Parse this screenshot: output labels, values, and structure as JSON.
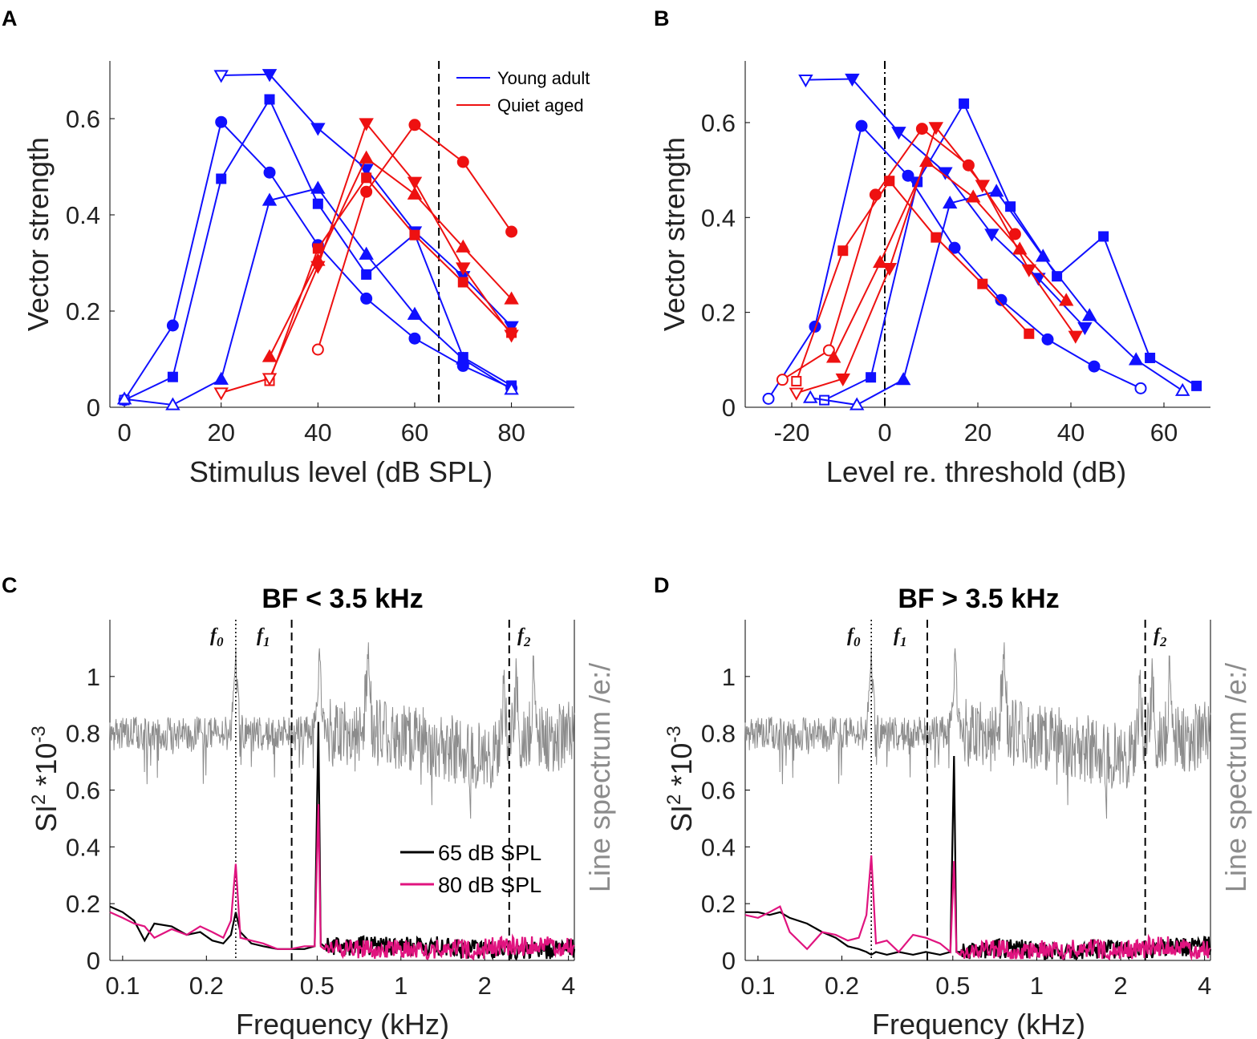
{
  "panels": {
    "A": {
      "letter": "A"
    },
    "B": {
      "letter": "B"
    },
    "C": {
      "letter": "C",
      "title": "BF < 3.5 kHz"
    },
    "D": {
      "letter": "D",
      "title": "BF > 3.5 kHz"
    }
  },
  "colors": {
    "young": "#1010ff",
    "aged": "#ee1111",
    "black": "#000000",
    "magenta": "#e0147f",
    "spectrum": "#8c8c8c"
  },
  "chart_data": [
    {
      "id": "A",
      "type": "line",
      "xlabel": "Stimulus level (dB SPL)",
      "ylabel": "Vector strength",
      "xlim": [
        -3,
        93
      ],
      "ylim": [
        0,
        0.72
      ],
      "xticks": [
        0,
        20,
        40,
        60,
        80
      ],
      "yticks": [
        0,
        0.2,
        0.4,
        0.6
      ],
      "ytick_labels": [
        "0",
        "0.2",
        "0.4",
        "0.6"
      ],
      "vline": {
        "x": 65,
        "style": "dashed"
      },
      "legend": [
        "Young adult",
        "Quiet aged"
      ],
      "series": [
        {
          "group": "young",
          "marker": "circle",
          "x": [
            0,
            10,
            20,
            30,
            40,
            50,
            60,
            70,
            80
          ],
          "y": [
            0.015,
            0.17,
            0.593,
            0.488,
            0.337,
            0.226,
            0.143,
            0.086,
            0.04
          ],
          "filled": [
            false,
            true,
            true,
            true,
            true,
            true,
            true,
            true,
            true
          ]
        },
        {
          "group": "young",
          "marker": "square",
          "x": [
            0,
            10,
            20,
            30,
            40,
            50,
            60,
            70,
            80
          ],
          "y": [
            0.015,
            0.063,
            0.475,
            0.64,
            0.423,
            0.276,
            0.36,
            0.104,
            0.045
          ],
          "filled": [
            false,
            true,
            true,
            true,
            true,
            true,
            true,
            true,
            true
          ]
        },
        {
          "group": "young",
          "marker": "triangle",
          "x": [
            0,
            10,
            20,
            30,
            40,
            50,
            60,
            70,
            80
          ],
          "y": [
            0.017,
            0.005,
            0.058,
            0.43,
            0.455,
            0.318,
            0.193,
            0.1,
            0.037
          ],
          "filled": [
            false,
            false,
            true,
            true,
            true,
            true,
            true,
            true,
            false
          ]
        },
        {
          "group": "young",
          "marker": "tri-down",
          "x": [
            20,
            30,
            40,
            50,
            60,
            70,
            80
          ],
          "y": [
            0.69,
            0.692,
            0.58,
            0.495,
            0.365,
            0.272,
            0.168
          ],
          "filled": [
            false,
            true,
            true,
            true,
            true,
            true,
            true
          ]
        },
        {
          "group": "aged",
          "marker": "circle",
          "x": [
            40,
            50,
            60,
            70,
            80
          ],
          "y": [
            0.12,
            0.448,
            0.587,
            0.51,
            0.365
          ],
          "filled": [
            false,
            true,
            true,
            true,
            true
          ]
        },
        {
          "group": "aged",
          "marker": "square",
          "x": [
            30,
            40,
            50,
            60,
            70,
            80
          ],
          "y": [
            0.055,
            0.33,
            0.477,
            0.358,
            0.26,
            0.155
          ],
          "filled": [
            false,
            true,
            true,
            true,
            true,
            true
          ]
        },
        {
          "group": "aged",
          "marker": "triangle",
          "x": [
            30,
            40,
            50,
            60,
            70,
            80
          ],
          "y": [
            0.105,
            0.305,
            0.518,
            0.443,
            0.333,
            0.225
          ],
          "filled": [
            true,
            true,
            true,
            true,
            true,
            true
          ]
        },
        {
          "group": "aged",
          "marker": "tri-down",
          "x": [
            20,
            30,
            40,
            50,
            60,
            70,
            80
          ],
          "y": [
            0.03,
            0.06,
            0.293,
            0.59,
            0.468,
            0.29,
            0.15
          ],
          "filled": [
            false,
            false,
            true,
            true,
            true,
            true,
            true
          ]
        }
      ]
    },
    {
      "id": "B",
      "type": "line",
      "xlabel": "Level re. threshold (dB)",
      "ylabel": "Vector strength",
      "xlim": [
        -30,
        70
      ],
      "ylim": [
        0,
        0.73
      ],
      "xticks": [
        -20,
        0,
        20,
        40,
        60
      ],
      "yticks": [
        0,
        0.2,
        0.4,
        0.6
      ],
      "ytick_labels": [
        "0",
        "0.2",
        "0.4",
        "0.6"
      ],
      "vline": {
        "x": 0,
        "style": "dashdot"
      },
      "series": [
        {
          "group": "young",
          "marker": "circle",
          "x": [
            -25,
            -15,
            -5,
            5,
            15,
            25,
            35,
            45,
            55
          ],
          "y": [
            0.018,
            0.17,
            0.593,
            0.488,
            0.336,
            0.226,
            0.143,
            0.086,
            0.04
          ],
          "filled": [
            false,
            true,
            true,
            true,
            true,
            true,
            true,
            true,
            false
          ]
        },
        {
          "group": "young",
          "marker": "square",
          "x": [
            -13,
            -3,
            7,
            17,
            27,
            37,
            47,
            57,
            67
          ],
          "y": [
            0.015,
            0.063,
            0.475,
            0.64,
            0.423,
            0.276,
            0.36,
            0.104,
            0.045
          ],
          "filled": [
            false,
            true,
            true,
            true,
            true,
            true,
            true,
            true,
            true
          ]
        },
        {
          "group": "young",
          "marker": "triangle",
          "x": [
            -16,
            -6,
            4,
            14,
            24,
            34,
            44,
            54,
            64
          ],
          "y": [
            0.02,
            0.005,
            0.058,
            0.43,
            0.455,
            0.318,
            0.193,
            0.1,
            0.035
          ],
          "filled": [
            false,
            false,
            true,
            true,
            true,
            true,
            true,
            true,
            false
          ]
        },
        {
          "group": "young",
          "marker": "tri-down",
          "x": [
            -17,
            -7,
            3,
            13,
            23,
            33,
            43
          ],
          "y": [
            0.69,
            0.692,
            0.58,
            0.495,
            0.365,
            0.272,
            0.168
          ],
          "filled": [
            false,
            true,
            true,
            true,
            true,
            true,
            true
          ]
        },
        {
          "group": "aged",
          "marker": "circle",
          "x": [
            -22,
            -12,
            -2,
            8,
            18,
            28
          ],
          "y": [
            0.058,
            0.12,
            0.448,
            0.587,
            0.51,
            0.365
          ],
          "filled": [
            false,
            false,
            true,
            true,
            true,
            true
          ]
        },
        {
          "group": "aged",
          "marker": "square",
          "x": [
            -19,
            -9,
            1,
            11,
            21,
            31
          ],
          "y": [
            0.055,
            0.33,
            0.477,
            0.358,
            0.26,
            0.155
          ],
          "filled": [
            false,
            true,
            true,
            true,
            true,
            true
          ]
        },
        {
          "group": "aged",
          "marker": "triangle",
          "x": [
            -11,
            -1,
            9,
            19,
            29,
            39
          ],
          "y": [
            0.105,
            0.305,
            0.518,
            0.443,
            0.333,
            0.225
          ],
          "filled": [
            true,
            true,
            true,
            true,
            true,
            true
          ]
        },
        {
          "group": "aged",
          "marker": "tri-down",
          "x": [
            -19,
            -9,
            1,
            11,
            21,
            31,
            41
          ],
          "y": [
            0.03,
            0.06,
            0.293,
            0.59,
            0.468,
            0.29,
            0.15
          ],
          "filled": [
            false,
            true,
            true,
            true,
            true,
            true,
            true
          ]
        }
      ]
    },
    {
      "id": "C",
      "type": "line",
      "title": "BF < 3.5 kHz",
      "xlabel": "Frequency (kHz)",
      "ylabel": "SI",
      "ylabel_sup": "2",
      "ylabel_mid": " *10",
      "ylabel_sup2": "-3",
      "ylabel_right": "Line spectrum /e:/",
      "xscale": "log",
      "xlim": [
        0.09,
        4.2
      ],
      "ylim": [
        0,
        1.2
      ],
      "xticks": [
        0.1,
        0.2,
        0.5,
        1,
        2,
        4
      ],
      "xtick_labels": [
        "0.1",
        "0.2",
        "0.5",
        "1",
        "2",
        "4"
      ],
      "yticks": [
        0,
        0.2,
        0.4,
        0.6,
        0.8,
        1
      ],
      "ytick_labels": [
        "0",
        "0.2",
        "0.4",
        "0.6",
        "0.8",
        "1"
      ],
      "formant_labels": {
        "f0": "f",
        "f0_sub": "0",
        "f1": "f",
        "f1_sub": "1",
        "f2": "f",
        "f2_sub": "2"
      },
      "vlines": [
        {
          "x": 0.255,
          "style": "dotted"
        },
        {
          "x": 0.405,
          "style": "dashed"
        },
        {
          "x": 2.45,
          "style": "dashed"
        }
      ],
      "series_legend": [
        "65 dB SPL",
        "80 dB SPL"
      ],
      "series_65": {
        "x": [
          0.09,
          0.1,
          0.11,
          0.12,
          0.13,
          0.15,
          0.17,
          0.19,
          0.21,
          0.23,
          0.245,
          0.255,
          0.265,
          0.29,
          0.32,
          0.36,
          0.4,
          0.45,
          0.49,
          0.505,
          0.515,
          0.53,
          0.6,
          0.8,
          1.0,
          1.5,
          2.0,
          2.45,
          3.0,
          4.2
        ],
        "y": [
          0.19,
          0.17,
          0.14,
          0.07,
          0.13,
          0.12,
          0.09,
          0.1,
          0.07,
          0.06,
          0.09,
          0.17,
          0.1,
          0.06,
          0.05,
          0.04,
          0.04,
          0.04,
          0.05,
          0.84,
          0.06,
          0.05,
          0.05,
          0.05,
          0.05,
          0.04,
          0.04,
          0.03,
          0.04,
          0.04
        ]
      },
      "series_80": {
        "x": [
          0.09,
          0.1,
          0.11,
          0.12,
          0.13,
          0.15,
          0.17,
          0.19,
          0.21,
          0.23,
          0.245,
          0.255,
          0.265,
          0.29,
          0.32,
          0.36,
          0.4,
          0.45,
          0.49,
          0.505,
          0.515,
          0.53,
          0.6,
          0.8,
          1.0,
          1.5,
          2.0,
          2.45,
          3.0,
          4.2
        ],
        "y": [
          0.17,
          0.15,
          0.13,
          0.12,
          0.08,
          0.11,
          0.09,
          0.12,
          0.1,
          0.08,
          0.14,
          0.34,
          0.08,
          0.07,
          0.06,
          0.04,
          0.04,
          0.05,
          0.05,
          0.55,
          0.05,
          0.04,
          0.04,
          0.04,
          0.04,
          0.04,
          0.05,
          0.05,
          0.05,
          0.05
        ]
      }
    },
    {
      "id": "D",
      "type": "line",
      "title": "BF > 3.5 kHz",
      "xlabel": "Frequency (kHz)",
      "ylabel": "SI",
      "ylabel_sup": "2",
      "ylabel_mid": " *10",
      "ylabel_sup2": "-3",
      "ylabel_right": "Line spectrum /e:/",
      "xscale": "log",
      "xlim": [
        0.09,
        4.2
      ],
      "ylim": [
        0,
        1.2
      ],
      "xticks": [
        0.1,
        0.2,
        0.5,
        1,
        2,
        4
      ],
      "xtick_labels": [
        "0.1",
        "0.2",
        "0.5",
        "1",
        "2",
        "4"
      ],
      "yticks": [
        0,
        0.2,
        0.4,
        0.6,
        0.8,
        1
      ],
      "ytick_labels": [
        "0",
        "0.2",
        "0.4",
        "0.6",
        "0.8",
        "1"
      ],
      "formant_labels": {
        "f0": "f",
        "f0_sub": "0",
        "f1": "f",
        "f1_sub": "1",
        "f2": "f",
        "f2_sub": "2"
      },
      "vlines": [
        {
          "x": 0.255,
          "style": "dotted"
        },
        {
          "x": 0.405,
          "style": "dashed"
        },
        {
          "x": 2.45,
          "style": "dashed"
        }
      ],
      "series_65": {
        "x": [
          0.09,
          0.1,
          0.11,
          0.12,
          0.13,
          0.15,
          0.17,
          0.19,
          0.21,
          0.23,
          0.245,
          0.255,
          0.265,
          0.29,
          0.32,
          0.36,
          0.4,
          0.45,
          0.49,
          0.505,
          0.515,
          0.53,
          0.6,
          0.8,
          1.0,
          1.5,
          2.0,
          2.45,
          3.0,
          4.2
        ],
        "y": [
          0.17,
          0.17,
          0.16,
          0.17,
          0.15,
          0.13,
          0.1,
          0.08,
          0.05,
          0.04,
          0.03,
          0.02,
          0.03,
          0.02,
          0.03,
          0.02,
          0.03,
          0.02,
          0.03,
          0.72,
          0.03,
          0.03,
          0.04,
          0.04,
          0.03,
          0.04,
          0.04,
          0.04,
          0.05,
          0.04
        ]
      },
      "series_80": {
        "x": [
          0.09,
          0.1,
          0.11,
          0.12,
          0.13,
          0.15,
          0.17,
          0.19,
          0.21,
          0.23,
          0.245,
          0.255,
          0.265,
          0.29,
          0.32,
          0.36,
          0.4,
          0.45,
          0.49,
          0.505,
          0.515,
          0.53,
          0.6,
          0.8,
          1.0,
          1.5,
          2.0,
          2.45,
          3.0,
          4.2
        ],
        "y": [
          0.16,
          0.15,
          0.17,
          0.19,
          0.1,
          0.04,
          0.1,
          0.09,
          0.07,
          0.08,
          0.16,
          0.37,
          0.06,
          0.07,
          0.03,
          0.09,
          0.08,
          0.06,
          0.03,
          0.35,
          0.03,
          0.02,
          0.04,
          0.03,
          0.04,
          0.04,
          0.04,
          0.05,
          0.04,
          0.04
        ]
      }
    }
  ]
}
